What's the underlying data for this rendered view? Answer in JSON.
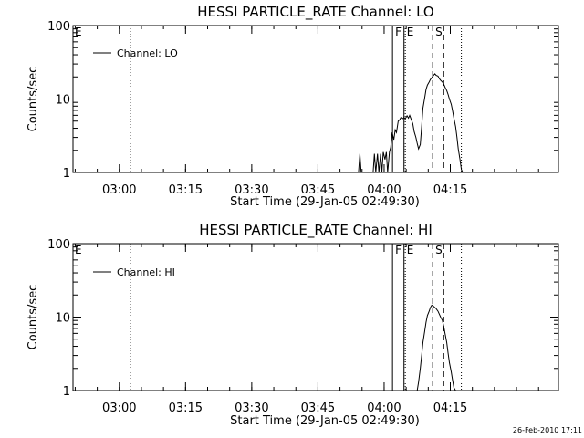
{
  "chart_data": [
    {
      "type": "line",
      "title": "HESSI PARTICLE_RATE Channel: LO",
      "ylabel": "Counts/sec",
      "xlabel": "Start Time (29-Jan-05 02:49:30)",
      "x_unit": "minutes since 02:49:30",
      "xlim": [
        0,
        110
      ],
      "ylim": [
        1,
        100
      ],
      "yscale": "log",
      "xticks": [
        {
          "label": "03:00",
          "value": 10.5
        },
        {
          "label": "03:15",
          "value": 25.5
        },
        {
          "label": "03:30",
          "value": 40.5
        },
        {
          "label": "03:45",
          "value": 55.5
        },
        {
          "label": "04:00",
          "value": 70.5
        },
        {
          "label": "04:15",
          "value": 85.5
        }
      ],
      "yticks": [
        {
          "label": "1",
          "value": 1
        },
        {
          "label": "10",
          "value": 10
        },
        {
          "label": "100",
          "value": 100
        }
      ],
      "legend": {
        "position": "top-left",
        "entries": [
          "Channel: LO"
        ]
      },
      "series": [
        {
          "name": "Channel: LO",
          "x": [
            64.7,
            65.0,
            65.3,
            68.0,
            68.3,
            68.6,
            69.0,
            69.3,
            69.7,
            70.0,
            70.3,
            70.7,
            71.0,
            71.3,
            71.7,
            72.0,
            72.3,
            72.7,
            73.0,
            73.3,
            73.7,
            74.0,
            74.3,
            74.7,
            75.0,
            75.3,
            75.7,
            76.0,
            76.3,
            76.7,
            77.0,
            77.3,
            77.7,
            78.0,
            78.3,
            78.7,
            79.0,
            79.3,
            79.7,
            80.0,
            80.3,
            80.7,
            81.0,
            81.3,
            81.7,
            82.0,
            82.3,
            82.7,
            83.0,
            83.3,
            83.7,
            84.0,
            84.3,
            84.7,
            85.0,
            85.3,
            85.7,
            86.0,
            86.3,
            86.7,
            87.0,
            87.3,
            87.7,
            88.0,
            88.3,
            88.7,
            89.0,
            89.3,
            89.7,
            90.0
          ],
          "y": [
            1,
            1.8,
            1,
            1,
            1.8,
            1,
            1.8,
            1,
            1.8,
            1,
            1.9,
            1.5,
            1.9,
            1,
            1.9,
            2.2,
            3.5,
            2.8,
            3.8,
            3.5,
            5.0,
            5.2,
            5.6,
            5.4,
            5.6,
            5.4,
            5.9,
            5.5,
            6.0,
            5.2,
            4.6,
            3.6,
            3.0,
            2.5,
            2.1,
            2.4,
            4.2,
            7.5,
            10.5,
            13.5,
            15.5,
            17.0,
            18.5,
            19.5,
            21.0,
            22.0,
            21.0,
            20.5,
            19.0,
            18.0,
            17.0,
            16.0,
            14.5,
            13.0,
            11.5,
            10.0,
            8.5,
            7.0,
            5.5,
            4.2,
            3.0,
            2.1,
            1.5,
            1.1,
            1,
            1,
            1,
            1,
            1,
            1
          ]
        }
      ],
      "markers": [
        {
          "label": "F",
          "value": 72.4,
          "style": "solid",
          "x": 72.4
        },
        {
          "label": "E",
          "value": 75.0,
          "style": "solid",
          "x": 75.0
        },
        {
          "label": "S",
          "value": 81.5,
          "style": "dashed",
          "x": 81.5
        },
        {
          "label": "",
          "value": 84.0,
          "style": "dashed",
          "x": 84.0
        },
        {
          "label": "",
          "value": 13.0,
          "style": "dotted",
          "x": 13.0
        },
        {
          "label": "",
          "value": 75.3,
          "style": "dotted",
          "x": 75.3
        },
        {
          "label": "",
          "value": 88.0,
          "style": "dotted",
          "x": 88.0
        }
      ],
      "left_marker_label": "E"
    },
    {
      "type": "line",
      "title": "HESSI PARTICLE_RATE Channel: HI",
      "ylabel": "Counts/sec",
      "xlabel": "Start Time (29-Jan-05 02:49:30)",
      "x_unit": "minutes since 02:49:30",
      "xlim": [
        0,
        110
      ],
      "ylim": [
        1,
        100
      ],
      "yscale": "log",
      "xticks": [
        {
          "label": "03:00",
          "value": 10.5
        },
        {
          "label": "03:15",
          "value": 25.5
        },
        {
          "label": "03:30",
          "value": 40.5
        },
        {
          "label": "03:45",
          "value": 55.5
        },
        {
          "label": "04:00",
          "value": 70.5
        },
        {
          "label": "04:15",
          "value": 85.5
        }
      ],
      "yticks": [
        {
          "label": "1",
          "value": 1
        },
        {
          "label": "10",
          "value": 10
        },
        {
          "label": "100",
          "value": 100
        }
      ],
      "legend": {
        "position": "top-left",
        "entries": [
          "Channel: HI"
        ]
      },
      "series": [
        {
          "name": "Channel: HI",
          "x": [
            78.0,
            78.3,
            78.7,
            79.0,
            79.3,
            79.7,
            80.0,
            80.3,
            80.7,
            81.0,
            81.3,
            81.7,
            82.0,
            82.3,
            82.7,
            83.0,
            83.3,
            83.7,
            84.0,
            84.3,
            84.7,
            85.0,
            85.3,
            85.7,
            86.0,
            86.3,
            86.7,
            87.0
          ],
          "y": [
            1,
            1.3,
            2.0,
            3.0,
            4.5,
            6.5,
            8.5,
            10.5,
            12.0,
            13.5,
            14.5,
            14.0,
            13.5,
            13.0,
            12.0,
            11.0,
            10.0,
            9.0,
            7.5,
            6.0,
            4.5,
            3.2,
            2.4,
            1.8,
            1.4,
            1.1,
            1,
            1
          ]
        }
      ],
      "markers": [
        {
          "label": "F",
          "value": 72.4,
          "style": "solid",
          "x": 72.4
        },
        {
          "label": "E",
          "value": 75.0,
          "style": "solid",
          "x": 75.0
        },
        {
          "label": "S",
          "value": 81.5,
          "style": "dashed",
          "x": 81.5
        },
        {
          "label": "",
          "value": 84.0,
          "style": "dashed",
          "x": 84.0
        },
        {
          "label": "",
          "value": 13.0,
          "style": "dotted",
          "x": 13.0
        },
        {
          "label": "",
          "value": 75.3,
          "style": "dotted",
          "x": 75.3
        },
        {
          "label": "",
          "value": 88.0,
          "style": "dotted",
          "x": 88.0
        }
      ],
      "left_marker_label": "E"
    }
  ],
  "footer": {
    "timestamp": "26-Feb-2010 17:11"
  }
}
